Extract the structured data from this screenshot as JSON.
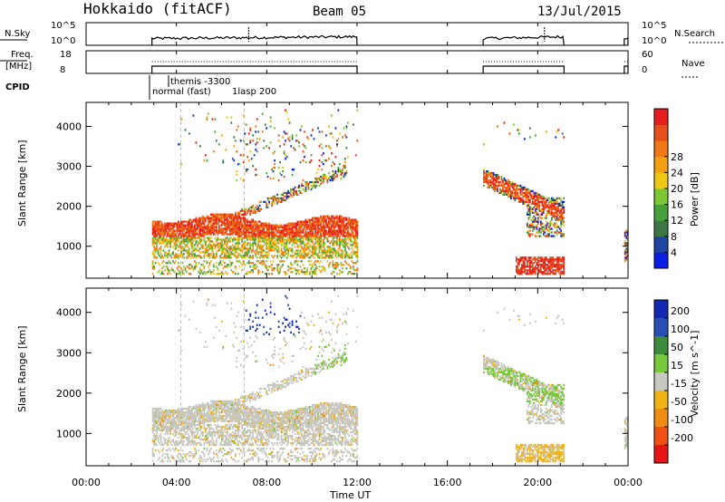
{
  "header": {
    "station": "Hokkaido (fitACF)",
    "beam": "Beam 05",
    "date": "13/Jul/2015"
  },
  "panels": {
    "nsky": {
      "label": "N.Sky",
      "right_label": "N.Search",
      "ticks_left": [
        "10^5",
        "10^0"
      ],
      "ticks_right": [
        "10^5",
        "10^0"
      ]
    },
    "freq": {
      "label_1": "Freq.",
      "label_2": "[MHz]",
      "right_label": "Nave",
      "ticks_left": [
        "18",
        "8"
      ],
      "ticks_right": [
        "60",
        "0"
      ]
    },
    "cpid": {
      "label": "CPID",
      "entries": [
        "themis -3300",
        "normal (fast)",
        "1lasp 200"
      ]
    }
  },
  "chart_data": [
    {
      "type": "heatmap",
      "title": "",
      "xlabel": "Time UT",
      "ylabel": "Slant Range [km]",
      "xlim": [
        "00:00",
        "00:00"
      ],
      "x_ticks": [
        "00:00",
        "04:00",
        "08:00",
        "12:00",
        "16:00",
        "20:00",
        "00:00"
      ],
      "ylim": [
        200,
        4600
      ],
      "y_ticks": [
        "1000",
        "2000",
        "3000",
        "4000"
      ],
      "colorbar": {
        "label": "Power [dB]",
        "ticks": [
          "4",
          "8",
          "12",
          "16",
          "20",
          "24",
          "28"
        ],
        "colors": [
          "#0a1ee6",
          "#1e46a0",
          "#3c7846",
          "#46a03c",
          "#7cc832",
          "#f0c814",
          "#f5a014",
          "#f07814",
          "#e6501e",
          "#e61e1e"
        ]
      },
      "data_coverage_ut": [
        [
          "02:55",
          "12:00"
        ],
        [
          "17:35",
          "21:10"
        ],
        [
          "23:50",
          "24:00"
        ]
      ]
    },
    {
      "type": "heatmap",
      "title": "",
      "xlabel": "Time UT",
      "ylabel": "Slant Range [km]",
      "ylim": [
        200,
        4600
      ],
      "y_ticks": [
        "1000",
        "2000",
        "3000",
        "4000"
      ],
      "colorbar": {
        "label": "Velocity [m s^-1]",
        "ticks": [
          "200",
          "100",
          "50",
          "15",
          "-15",
          "-50",
          "-100",
          "-200"
        ],
        "colors": [
          "#1428b4",
          "#2850b4",
          "#3c8c3c",
          "#78c83c",
          "#c8c8c0",
          "#f0b414",
          "#f08c14",
          "#f05014",
          "#e61414"
        ]
      },
      "data_coverage_ut": [
        [
          "02:55",
          "12:00"
        ],
        [
          "17:35",
          "21:10"
        ],
        [
          "23:50",
          "24:00"
        ]
      ]
    }
  ],
  "axis": {
    "x_ticks": [
      "00:00",
      "04:00",
      "08:00",
      "12:00",
      "16:00",
      "20:00",
      "00:00"
    ],
    "xlabel": "Time UT"
  }
}
